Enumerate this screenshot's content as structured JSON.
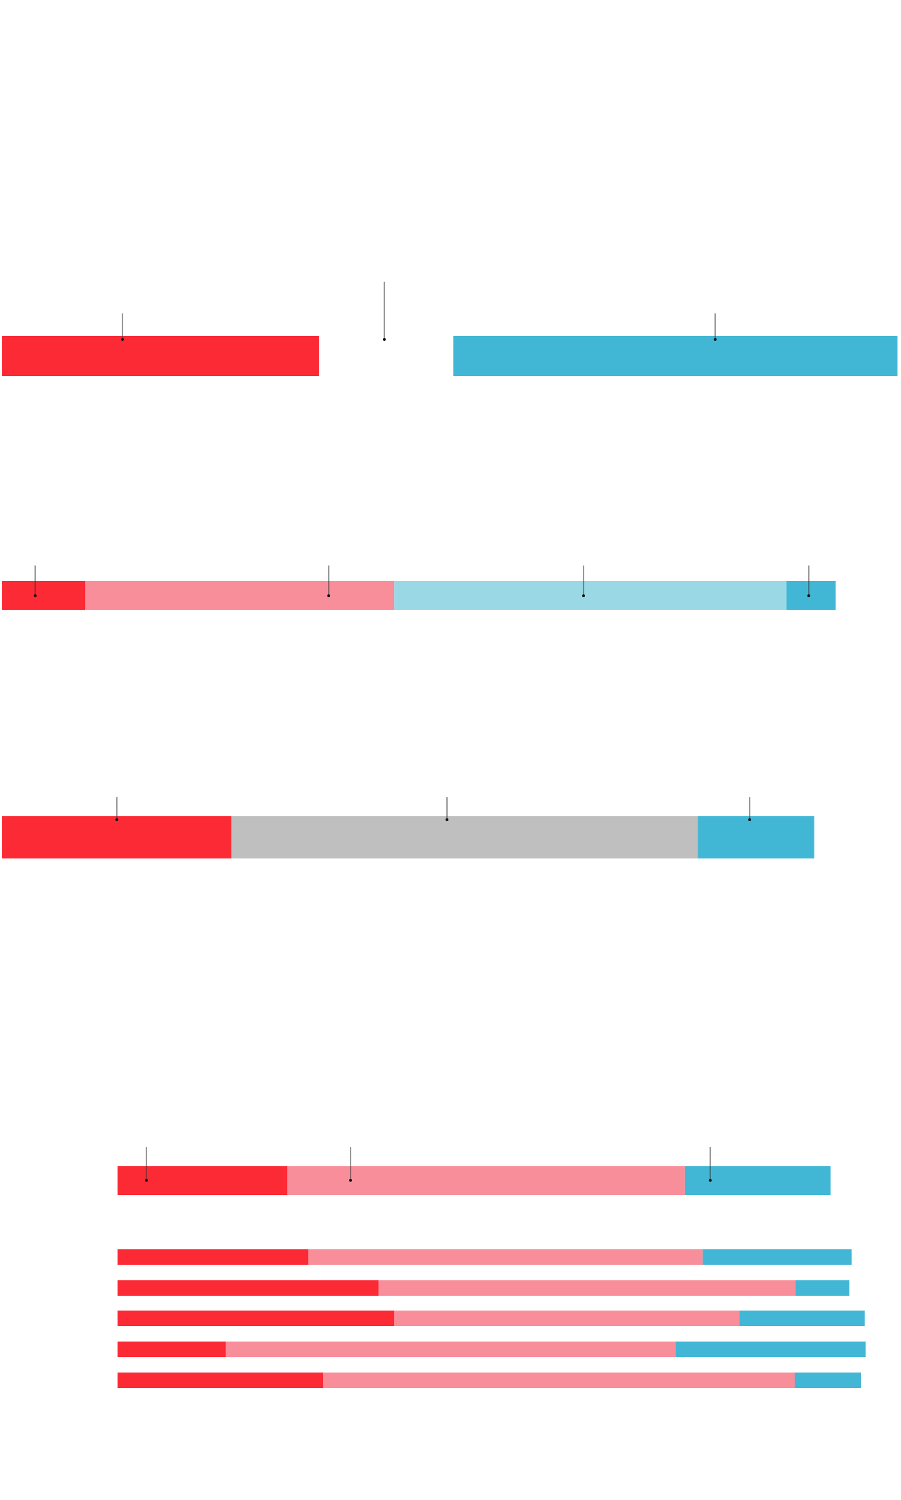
{
  "chart_data": [
    {
      "type": "bar",
      "orientation": "horizontal",
      "stacked": true,
      "xlim": [
        0,
        100
      ],
      "series": [
        {
          "color": "#fc2a35",
          "values": [
            35.4
          ]
        },
        {
          "color": "#ffffff",
          "values": [
            15.0
          ]
        },
        {
          "color": "#42b7d5",
          "values": [
            49.6
          ]
        }
      ]
    },
    {
      "type": "bar",
      "orientation": "horizontal",
      "stacked": true,
      "xlim": [
        0,
        100
      ],
      "series": [
        {
          "color": "#fc2a35",
          "values": [
            9.3
          ]
        },
        {
          "color": "#f98e9b",
          "values": [
            34.5
          ]
        },
        {
          "color": "#9bd8e6",
          "values": [
            43.8
          ]
        },
        {
          "color": "#42b7d5",
          "values": [
            5.5
          ]
        }
      ]
    },
    {
      "type": "bar",
      "orientation": "horizontal",
      "stacked": true,
      "xlim": [
        0,
        100
      ],
      "series": [
        {
          "color": "#fc2a35",
          "values": [
            25.6
          ]
        },
        {
          "color": "#bfbfbf",
          "values": [
            52.1
          ]
        },
        {
          "color": "#42b7d5",
          "values": [
            13.0
          ]
        }
      ]
    },
    {
      "type": "bar",
      "orientation": "horizontal",
      "stacked": true,
      "xlim": [
        0,
        100
      ],
      "series": [
        {
          "color": "#fc2a35",
          "values": [
            21.8
          ]
        },
        {
          "color": "#f98e9b",
          "values": [
            51.0
          ]
        },
        {
          "color": "#42b7d5",
          "values": [
            18.7
          ]
        }
      ]
    },
    {
      "type": "bar",
      "orientation": "horizontal",
      "stacked": true,
      "xlim": [
        0,
        100
      ],
      "categories": [
        null,
        null,
        null,
        null,
        null
      ],
      "series": [
        {
          "color": "#fc2a35",
          "values": [
            24.5,
            33.5,
            35.5,
            13.9,
            26.4
          ]
        },
        {
          "color": "#f98e9b",
          "values": [
            50.6,
            53.5,
            44.3,
            57.7,
            60.5
          ]
        },
        {
          "color": "#42b7d5",
          "values": [
            19.1,
            6.9,
            16.1,
            24.4,
            8.5
          ]
        }
      ]
    }
  ]
}
